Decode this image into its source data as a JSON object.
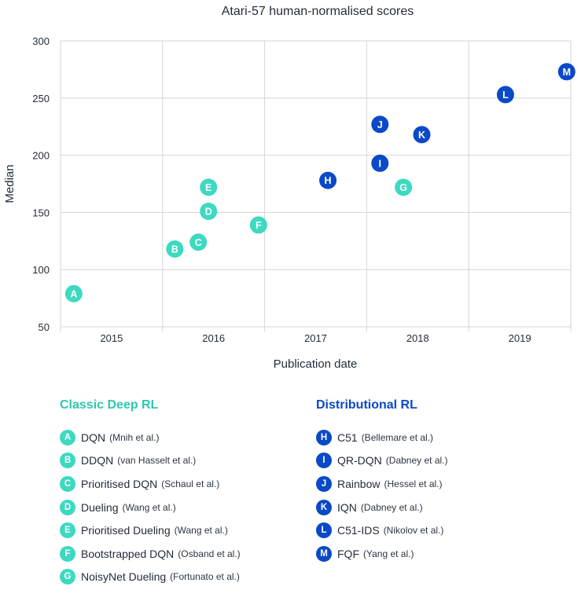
{
  "colors": {
    "classic": "#3dd9c1",
    "classic_title": "#2ec7b1",
    "distributional": "#0a49c7",
    "grid": "#d6d6d6",
    "text": "#1f2b3a"
  },
  "chart_data": {
    "type": "scatter",
    "title": "Atari-57 human-normalised scores",
    "xlabel": "Publication date",
    "ylabel": "Median",
    "xlim": [
      2014.5,
      2019.5
    ],
    "ylim": [
      50,
      300
    ],
    "yticks": [
      50,
      100,
      150,
      200,
      250,
      300
    ],
    "xticks": [
      {
        "label": "2015",
        "value": 2015
      },
      {
        "label": "2016",
        "value": 2016
      },
      {
        "label": "2017",
        "value": 2017
      },
      {
        "label": "2018",
        "value": 2018
      },
      {
        "label": "2019",
        "value": 2019
      }
    ],
    "xgrid": [
      2015.5,
      2016.5,
      2017.5,
      2018.5,
      2019.5
    ],
    "series": [
      {
        "name": "Classic Deep RL",
        "color": "#3dd9c1",
        "points": [
          {
            "letter": "A",
            "x": 2014.63,
            "y": 79,
            "method": "DQN",
            "authors": "(Mnih et al.)"
          },
          {
            "letter": "B",
            "x": 2015.62,
            "y": 118,
            "method": "DDQN",
            "authors": "(van Hasselt et al.)"
          },
          {
            "letter": "C",
            "x": 2015.85,
            "y": 124,
            "method": "Prioritised DQN",
            "authors": "(Schaul et al.)"
          },
          {
            "letter": "D",
            "x": 2015.95,
            "y": 151,
            "method": "Dueling",
            "authors": "(Wang et al.)"
          },
          {
            "letter": "E",
            "x": 2015.95,
            "y": 172,
            "method": "Prioritised Dueling",
            "authors": "(Wang et al.)"
          },
          {
            "letter": "F",
            "x": 2016.44,
            "y": 139,
            "method": "Bootstrapped DQN",
            "authors": "(Osband et al.)"
          },
          {
            "letter": "G",
            "x": 2017.86,
            "y": 172,
            "method": "NoisyNet Dueling",
            "authors": "(Fortunato et al.)"
          }
        ]
      },
      {
        "name": "Distributional RL",
        "color": "#0a49c7",
        "points": [
          {
            "letter": "H",
            "x": 2017.12,
            "y": 178,
            "method": "C51",
            "authors": "(Bellemare et al.)"
          },
          {
            "letter": "I",
            "x": 2017.63,
            "y": 193,
            "method": "QR-DQN",
            "authors": "(Dabney et al.)"
          },
          {
            "letter": "J",
            "x": 2017.63,
            "y": 227,
            "method": "Rainbow",
            "authors": "(Hessel et al.)"
          },
          {
            "letter": "K",
            "x": 2018.04,
            "y": 218,
            "method": "IQN",
            "authors": "(Dabney et al.)"
          },
          {
            "letter": "L",
            "x": 2018.86,
            "y": 253,
            "method": "C51-IDS",
            "authors": "(Nikolov et al.)"
          },
          {
            "letter": "M",
            "x": 2019.46,
            "y": 273,
            "method": "FQF",
            "authors": "(Yang et al.)"
          }
        ]
      }
    ]
  },
  "legend": {
    "classic_title": "Classic Deep RL",
    "distributional_title": "Distributional RL"
  }
}
